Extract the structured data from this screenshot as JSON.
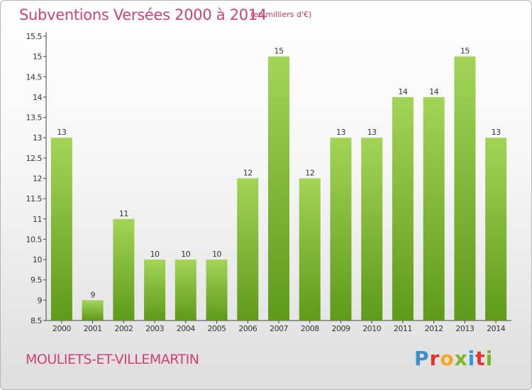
{
  "header": {
    "title": "Subventions Versées 2000 à 2014",
    "unit": "(en milliers d'€)"
  },
  "footer": {
    "commune": "MOULIETS-ET-VILLEMARTIN",
    "logo_text": "Proxiti",
    "logo_colors": [
      "#3a8fd4",
      "#e0352f",
      "#f5a623",
      "#7bb828",
      "#2d9ad8",
      "#e0352f",
      "#7bb828"
    ]
  },
  "colors": {
    "title": "#d13f77",
    "bar_top": "#a3d458",
    "bar_bottom": "#5f9a1a",
    "axis": "#444444"
  },
  "chart_data": {
    "type": "bar",
    "categories": [
      "2000",
      "2001",
      "2002",
      "2003",
      "2004",
      "2005",
      "2006",
      "2007",
      "2008",
      "2009",
      "2010",
      "2011",
      "2012",
      "2013",
      "2014"
    ],
    "values": [
      13,
      9,
      11,
      10,
      10,
      10,
      12,
      15,
      12,
      13,
      13,
      14,
      14,
      15,
      13
    ],
    "data_labels": [
      "13",
      "9",
      "11",
      "10",
      "10",
      "10",
      "12",
      "15",
      "12",
      "13",
      "13",
      "14",
      "14",
      "15",
      "13"
    ],
    "ylim": [
      8.5,
      15.5
    ],
    "yticks": [
      8.5,
      9,
      9.5,
      10,
      10.5,
      11,
      11.5,
      12,
      12.5,
      13,
      13.5,
      14,
      14.5,
      15,
      15.5
    ],
    "ytick_labels": [
      "8.5",
      "9",
      "9.5",
      "10",
      "10.5",
      "11",
      "11.5",
      "12",
      "12.5",
      "13",
      "13.5",
      "14",
      "14.5",
      "15",
      "15.5"
    ],
    "grid": false,
    "legend": "none"
  }
}
